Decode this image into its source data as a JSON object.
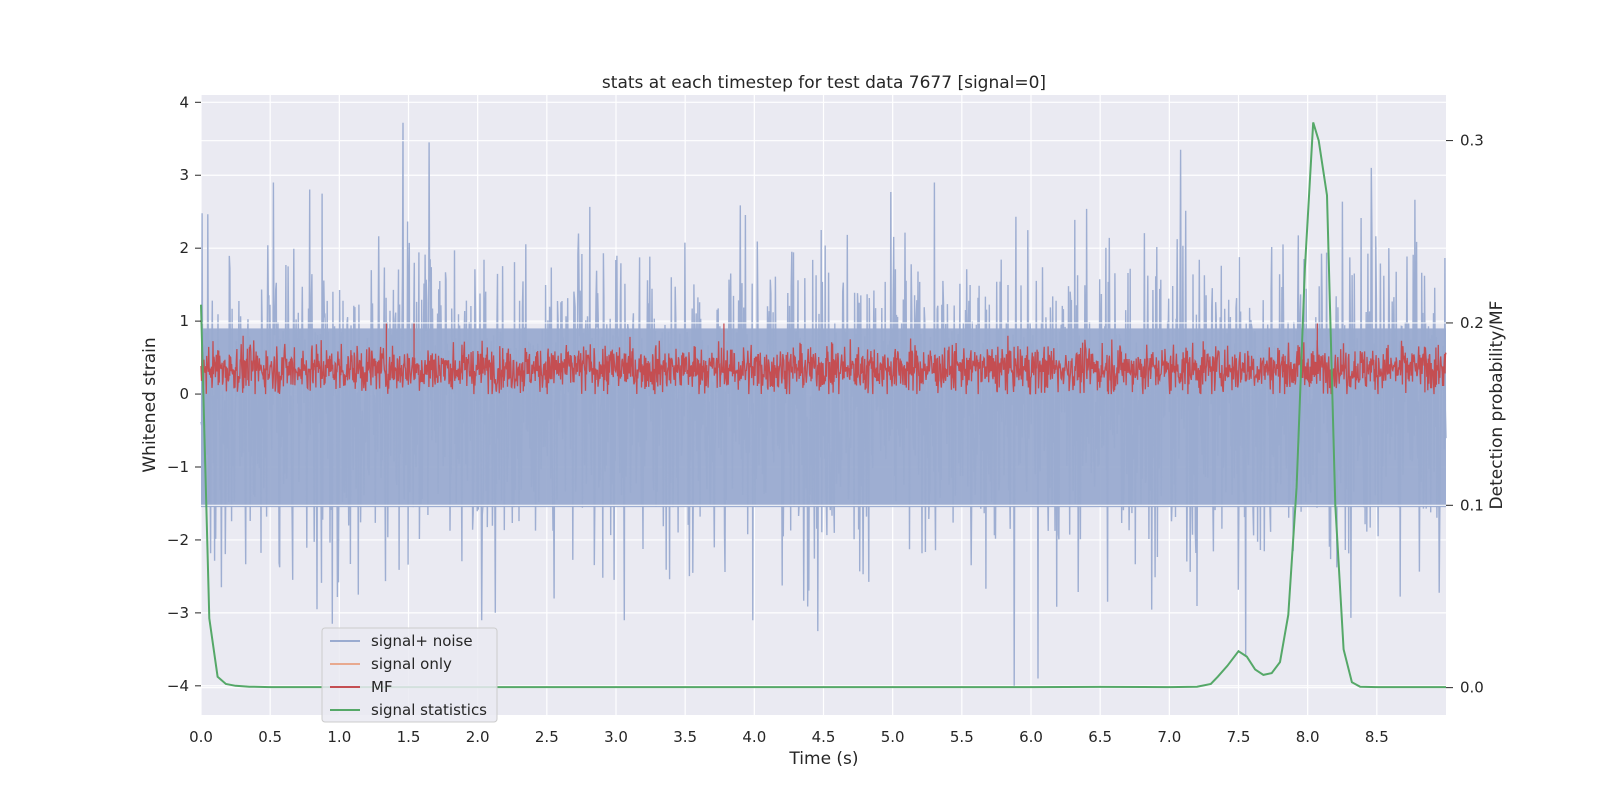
{
  "chart_data": {
    "type": "line",
    "title": "stats at each timestep for test data 7677 [signal=0]",
    "xlabel": "Time (s)",
    "ylabel": "Whitened strain",
    "ylabel_right": "Detection probability/MF",
    "xlim": [
      0.0,
      9.0
    ],
    "ylim": [
      -4.4,
      4.1
    ],
    "ylim_right": [
      -0.015,
      0.325
    ],
    "x_ticks": [
      "0.0",
      "0.5",
      "1.0",
      "1.5",
      "2.0",
      "2.5",
      "3.0",
      "3.5",
      "4.0",
      "4.5",
      "5.0",
      "5.5",
      "6.0",
      "6.5",
      "7.0",
      "7.5",
      "8.0",
      "8.5"
    ],
    "y_ticks": [
      "4",
      "3",
      "2",
      "1",
      "0",
      "−1",
      "−2",
      "−3",
      "−4"
    ],
    "y_ticks_right": [
      "0.0",
      "0.1",
      "0.2",
      "0.3"
    ],
    "grid": true,
    "legend_position": "lower-left",
    "colors": {
      "background": "#eaeaf2",
      "grid": "#ffffff",
      "signal_noise": "#9aabd0",
      "signal_only": "#e8a98f",
      "mf": "#c44e52",
      "signal_statistics": "#55a868"
    },
    "series": [
      {
        "name": "signal+ noise",
        "axis": "left",
        "description_stats": {
          "upper_band_typical": [
            1.0,
            2.0
          ],
          "lower_band_typical": [
            -1.5,
            -2.2
          ],
          "notable_peaks": [
            [
              1.46,
              3.72
            ],
            [
              1.65,
              3.45
            ],
            [
              7.08,
              3.35
            ],
            [
              8.46,
              3.1
            ]
          ],
          "notable_troughs": [
            [
              5.88,
              -4.0
            ],
            [
              6.05,
              -3.9
            ],
            [
              4.46,
              -3.25
            ],
            [
              7.55,
              -3.6
            ],
            [
              0.95,
              -3.15
            ]
          ]
        }
      },
      {
        "name": "signal only",
        "axis": "left",
        "values": []
      },
      {
        "name": "MF",
        "axis": "left",
        "band": [
          0.0,
          0.75
        ],
        "notable_peaks": [
          [
            1.34,
            0.97
          ],
          [
            1.54,
            0.98
          ],
          [
            3.78,
            0.97
          ],
          [
            8.07,
            0.98
          ]
        ]
      },
      {
        "name": "signal statistics",
        "axis": "right",
        "x": [
          0.0,
          0.06,
          0.12,
          0.18,
          0.25,
          0.35,
          0.5,
          1.0,
          2.0,
          3.0,
          4.0,
          5.0,
          6.0,
          6.5,
          7.0,
          7.2,
          7.3,
          7.35,
          7.42,
          7.5,
          7.56,
          7.62,
          7.68,
          7.74,
          7.8,
          7.86,
          7.92,
          7.98,
          8.04,
          8.08,
          8.14,
          8.2,
          8.26,
          8.32,
          8.38,
          8.5,
          8.8,
          9.0
        ],
        "values": [
          0.21,
          0.038,
          0.006,
          0.002,
          0.001,
          0.0005,
          0.0003,
          0.0003,
          0.0003,
          0.0003,
          0.0003,
          0.0003,
          0.0003,
          0.0004,
          0.0003,
          0.0005,
          0.002,
          0.006,
          0.012,
          0.02,
          0.017,
          0.01,
          0.007,
          0.008,
          0.014,
          0.04,
          0.11,
          0.23,
          0.31,
          0.3,
          0.27,
          0.1,
          0.021,
          0.003,
          0.0005,
          0.0003,
          0.0003,
          0.0003
        ]
      }
    ]
  }
}
